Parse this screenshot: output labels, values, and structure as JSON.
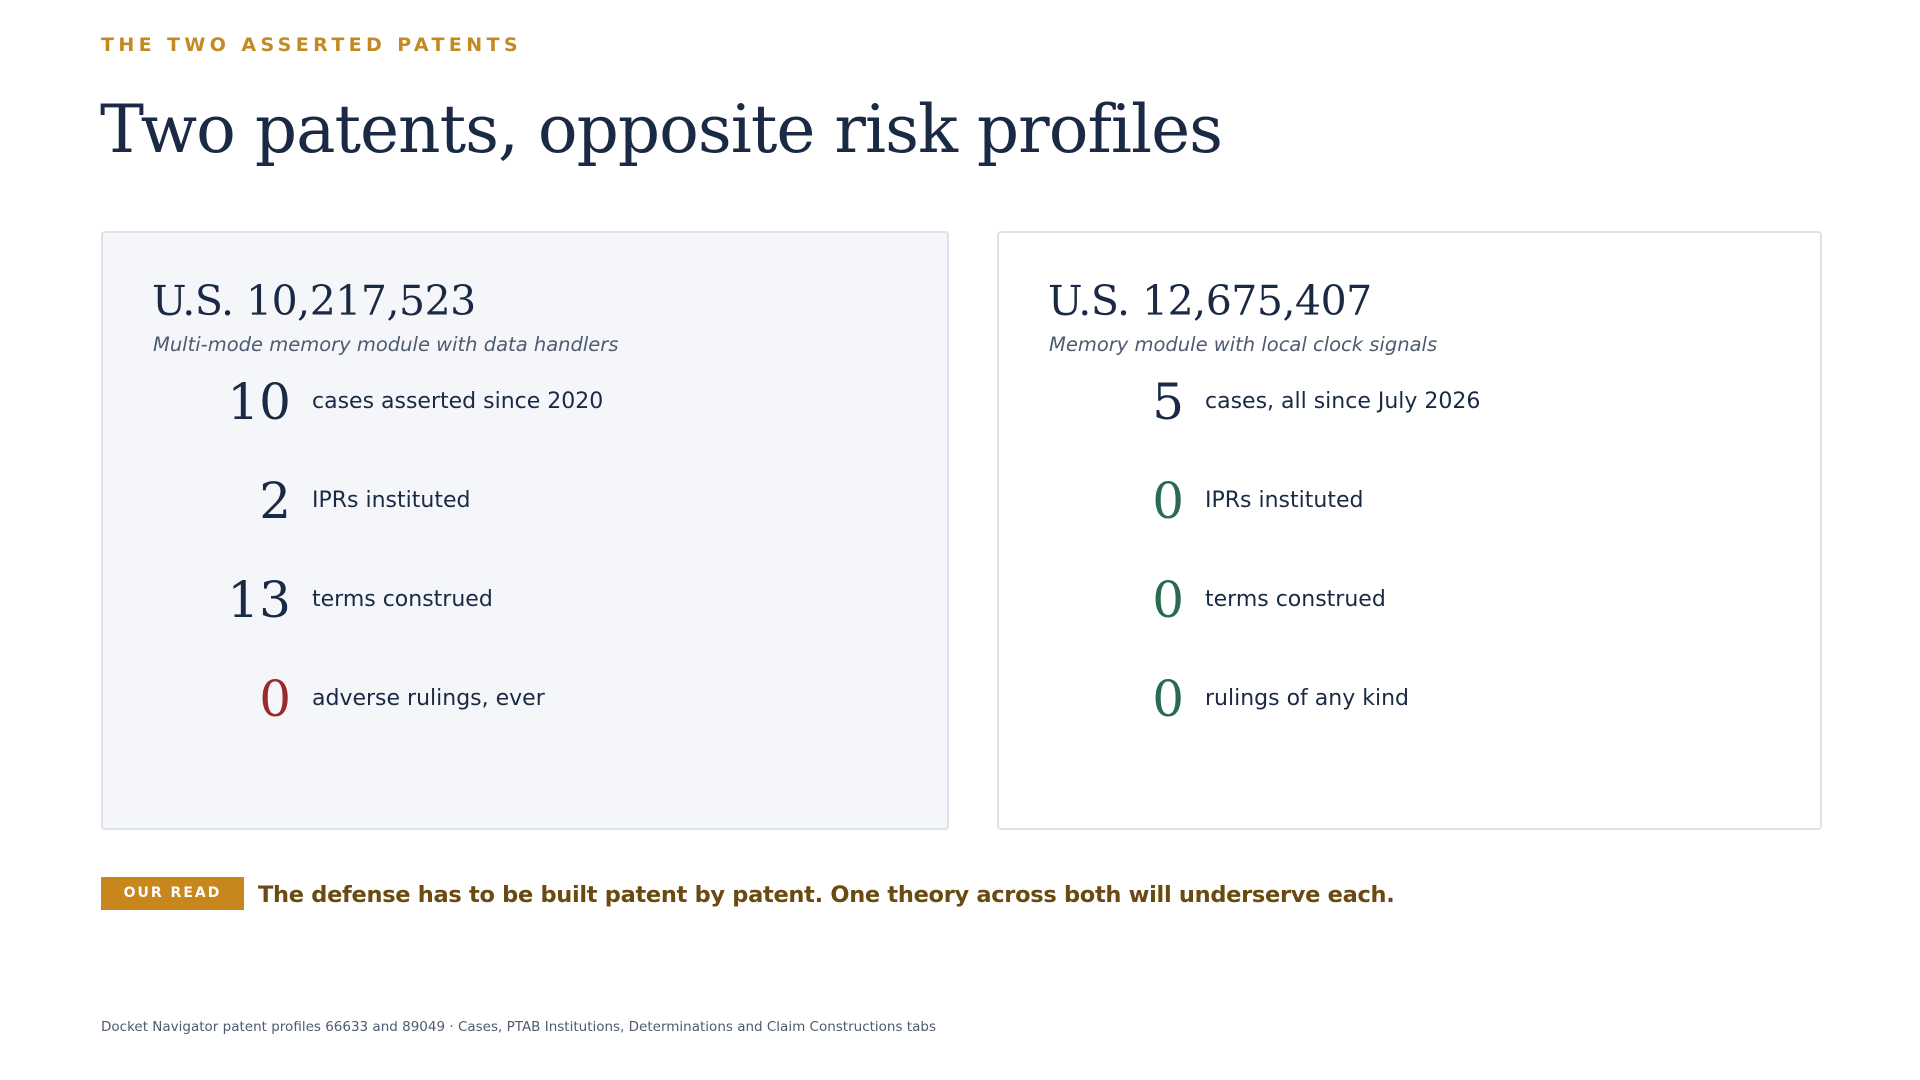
{
  "header": {
    "eyebrow": "THE TWO ASSERTED PATENTS",
    "title": "Two patents, opposite risk profiles"
  },
  "patents": [
    {
      "number": "U.S. 10,217,523",
      "description": "Multi-mode memory module with data handlers",
      "stats": [
        {
          "value": "10",
          "label": "cases asserted since 2020",
          "tone": "default"
        },
        {
          "value": "2",
          "label": "IPRs instituted",
          "tone": "default"
        },
        {
          "value": "13",
          "label": "terms construed",
          "tone": "default"
        },
        {
          "value": "0",
          "label": "adverse rulings, ever",
          "tone": "red"
        }
      ]
    },
    {
      "number": "U.S. 12,675,407",
      "description": "Memory module with local clock signals",
      "stats": [
        {
          "value": "5",
          "label": "cases, all since July 2026",
          "tone": "default"
        },
        {
          "value": "0",
          "label": "IPRs instituted",
          "tone": "green"
        },
        {
          "value": "0",
          "label": "terms construed",
          "tone": "green"
        },
        {
          "value": "0",
          "label": "rulings of any kind",
          "tone": "green"
        }
      ]
    }
  ],
  "our_read": {
    "badge": "OUR READ",
    "text": "The defense has to be built patent by patent. One theory across both will underserve each."
  },
  "footer": {
    "source": "Docket Navigator patent profiles 66633 and 89049  ·  Cases, PTAB Institutions, Determinations and Claim Constructions tabs"
  },
  "colors": {
    "accent": "#c38a23",
    "navy": "#1b2a44",
    "adverse_red": "#9b2a2f",
    "clear_green": "#2a6a4e",
    "read_text": "#6b4a12"
  }
}
